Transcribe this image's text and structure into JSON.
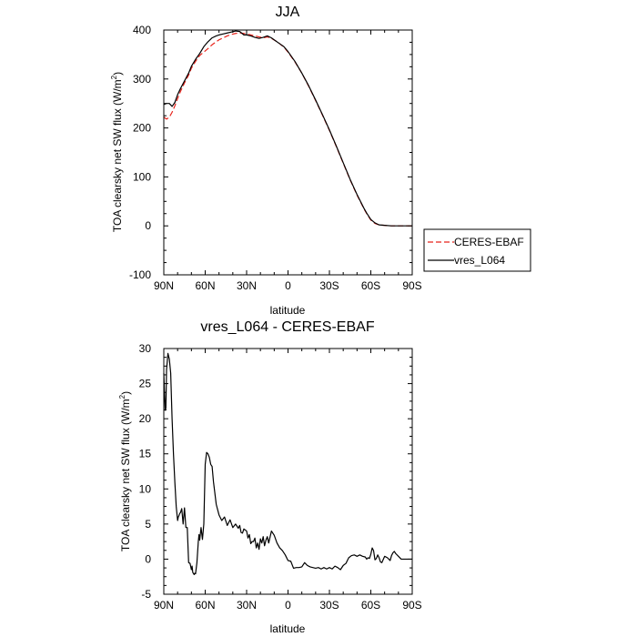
{
  "chart_data": [
    {
      "type": "line",
      "title": "JJA",
      "xlabel": "latitude",
      "ylabel": "TOA clearsky net SW flux (W/m²)",
      "ylabel_main": "TOA clearsky net SW flux (W/m",
      "ylabel_sup": "2",
      "ylabel_close": ")",
      "xlim": [
        90,
        -90
      ],
      "ylim": [
        -100,
        400
      ],
      "xticks": [
        90,
        60,
        30,
        0,
        -30,
        -60,
        -90
      ],
      "xtick_labels": [
        "90N",
        "60N",
        "30N",
        "0",
        "30S",
        "60S",
        "90S"
      ],
      "yticks": [
        -100,
        0,
        100,
        200,
        300,
        400
      ],
      "ytick_labels": [
        "-100",
        "0",
        "100",
        "200",
        "300",
        "400"
      ],
      "legend": [
        "CERES-EBAF",
        "vres_L064"
      ],
      "series": [
        {
          "name": "CERES-EBAF",
          "color": "#e8231b",
          "dash": "dashed",
          "x": [
            90,
            88,
            86,
            84,
            82,
            80,
            78,
            75,
            72,
            70,
            67,
            64,
            61,
            58,
            55,
            52,
            50,
            47,
            44,
            41,
            38,
            35,
            32,
            30,
            27,
            24,
            21,
            18,
            15,
            12,
            9,
            6,
            3,
            0,
            -5,
            -10,
            -15,
            -20,
            -25,
            -30,
            -35,
            -40,
            -45,
            -50,
            -55,
            -57,
            -60,
            -63,
            -66,
            -70,
            -75,
            -80,
            -85,
            -90
          ],
          "y": [
            222,
            218,
            222,
            232,
            245,
            260,
            274,
            292,
            308,
            322,
            336,
            348,
            355,
            362,
            370,
            376,
            380,
            384,
            388,
            391,
            393,
            394,
            393,
            392,
            390,
            388,
            386,
            384,
            386,
            383,
            378,
            372,
            365,
            355,
            335,
            312,
            285,
            256,
            226,
            195,
            162,
            128,
            94,
            63,
            35,
            25,
            12,
            5,
            2,
            1,
            0,
            0,
            0,
            0
          ]
        },
        {
          "name": "vres_L064",
          "color": "#000000",
          "dash": "solid",
          "x": [
            90,
            88,
            86,
            84,
            82,
            80,
            78,
            75,
            72,
            70,
            67,
            64,
            61,
            58,
            55,
            52,
            50,
            47,
            44,
            41,
            38,
            35,
            32,
            30,
            27,
            24,
            21,
            18,
            15,
            12,
            9,
            6,
            3,
            0,
            -5,
            -10,
            -15,
            -20,
            -25,
            -30,
            -35,
            -40,
            -45,
            -50,
            -55,
            -57,
            -60,
            -63,
            -66,
            -70,
            -75,
            -80,
            -85,
            -90
          ],
          "y": [
            248,
            250,
            250,
            244,
            252,
            268,
            280,
            296,
            312,
            326,
            340,
            352,
            366,
            376,
            384,
            388,
            390,
            392,
            394,
            396,
            398,
            397,
            390,
            390,
            388,
            385,
            383,
            385,
            388,
            384,
            378,
            372,
            366,
            356,
            336,
            312,
            286,
            257,
            227,
            196,
            163,
            129,
            95,
            64,
            36,
            26,
            13,
            6,
            2,
            1,
            0,
            0,
            0,
            0
          ]
        }
      ]
    },
    {
      "type": "line",
      "title": "vres_L064 - CERES-EBAF",
      "xlabel": "latitude",
      "ylabel": "TOA clearsky net SW flux (W/m²)",
      "ylabel_main": "TOA clearsky net SW flux (W/m",
      "ylabel_sup": "2",
      "ylabel_close": ")",
      "xlim": [
        90,
        -90
      ],
      "ylim": [
        -5,
        30
      ],
      "xticks": [
        90,
        60,
        30,
        0,
        -30,
        -60,
        -90
      ],
      "xtick_labels": [
        "90N",
        "60N",
        "30N",
        "0",
        "30S",
        "60S",
        "90S"
      ],
      "yticks": [
        -5,
        0,
        5,
        10,
        15,
        20,
        25,
        30
      ],
      "ytick_labels": [
        "-5",
        "0",
        "5",
        "10",
        "15",
        "20",
        "25",
        "30"
      ],
      "series": [
        {
          "name": "vres_L064 - CERES-EBAF",
          "color": "#000000",
          "dash": "solid",
          "x": [
            90,
            89,
            88.5,
            88,
            87,
            86,
            85,
            84,
            83,
            82,
            81,
            80,
            79.5,
            79,
            78.5,
            78,
            77,
            76,
            75,
            74,
            73,
            72,
            71,
            70,
            69.5,
            69,
            68,
            67.5,
            67,
            66,
            65,
            64.5,
            64,
            63,
            62,
            61,
            60,
            59,
            58,
            57,
            56,
            55,
            54,
            52,
            50,
            48,
            46,
            44,
            42,
            40,
            38,
            36,
            35,
            34,
            33,
            32,
            30,
            29,
            28,
            27,
            26,
            25,
            24,
            23,
            22,
            21,
            20,
            19,
            18,
            17,
            16,
            15,
            14,
            12,
            10,
            8,
            6,
            4,
            2,
            0,
            -2,
            -4,
            -6,
            -8,
            -10,
            -12,
            -14,
            -16,
            -18,
            -20,
            -22,
            -24,
            -26,
            -28,
            -30,
            -32,
            -34,
            -36,
            -38,
            -40,
            -42,
            -44,
            -46,
            -48,
            -50,
            -52,
            -54,
            -56,
            -57,
            -58,
            -59,
            -60,
            -61,
            -62,
            -63,
            -64,
            -65,
            -66,
            -67,
            -68,
            -70,
            -72,
            -74,
            -75,
            -76,
            -77,
            -78,
            -80,
            -82,
            -85,
            -88,
            -90
          ],
          "y": [
            26.5,
            21.2,
            21.5,
            27,
            29.3,
            28.5,
            26.5,
            20,
            15,
            11,
            7.5,
            5.5,
            6,
            6.2,
            6.5,
            6.6,
            7.2,
            5,
            7.3,
            4.5,
            4.5,
            -0.5,
            -0.6,
            -1.5,
            -1,
            -1.9,
            -2.2,
            -2,
            -2.1,
            -0.5,
            2.5,
            3.5,
            2.7,
            4.5,
            2.8,
            5,
            13.5,
            15.2,
            15,
            14.5,
            13.5,
            13.2,
            11,
            7.8,
            6.3,
            5.5,
            6,
            4.8,
            5.6,
            4.5,
            5,
            4.4,
            4.8,
            3.8,
            3.7,
            4.3,
            4,
            3,
            3.5,
            2.2,
            2.5,
            2.5,
            3,
            1.6,
            2.3,
            1.4,
            2.9,
            2.3,
            3.2,
            1.9,
            2.7,
            3.2,
            2.3,
            4,
            3.4,
            2.3,
            1.6,
            1.2,
            0.6,
            -0.2,
            -0.3,
            -1.3,
            -1.2,
            -1.2,
            -1.1,
            -0.5,
            -0.9,
            -1.1,
            -1.2,
            -1.3,
            -1.2,
            -1.4,
            -1.2,
            -1.4,
            -1.2,
            -1.4,
            -1,
            -1.2,
            -1.5,
            -0.9,
            -0.6,
            0.2,
            0.5,
            0.6,
            0.4,
            0.6,
            0.4,
            0.3,
            0,
            0.2,
            0.1,
            0.7,
            1.6,
            1.2,
            -0.1,
            0.1,
            0.6,
            0.2,
            -0.4,
            -0.5,
            0.4,
            0.2,
            -0.2,
            0.5,
            0.9,
            1.1,
            0.8,
            0.4,
            0,
            0,
            0,
            0
          ]
        }
      ]
    }
  ]
}
